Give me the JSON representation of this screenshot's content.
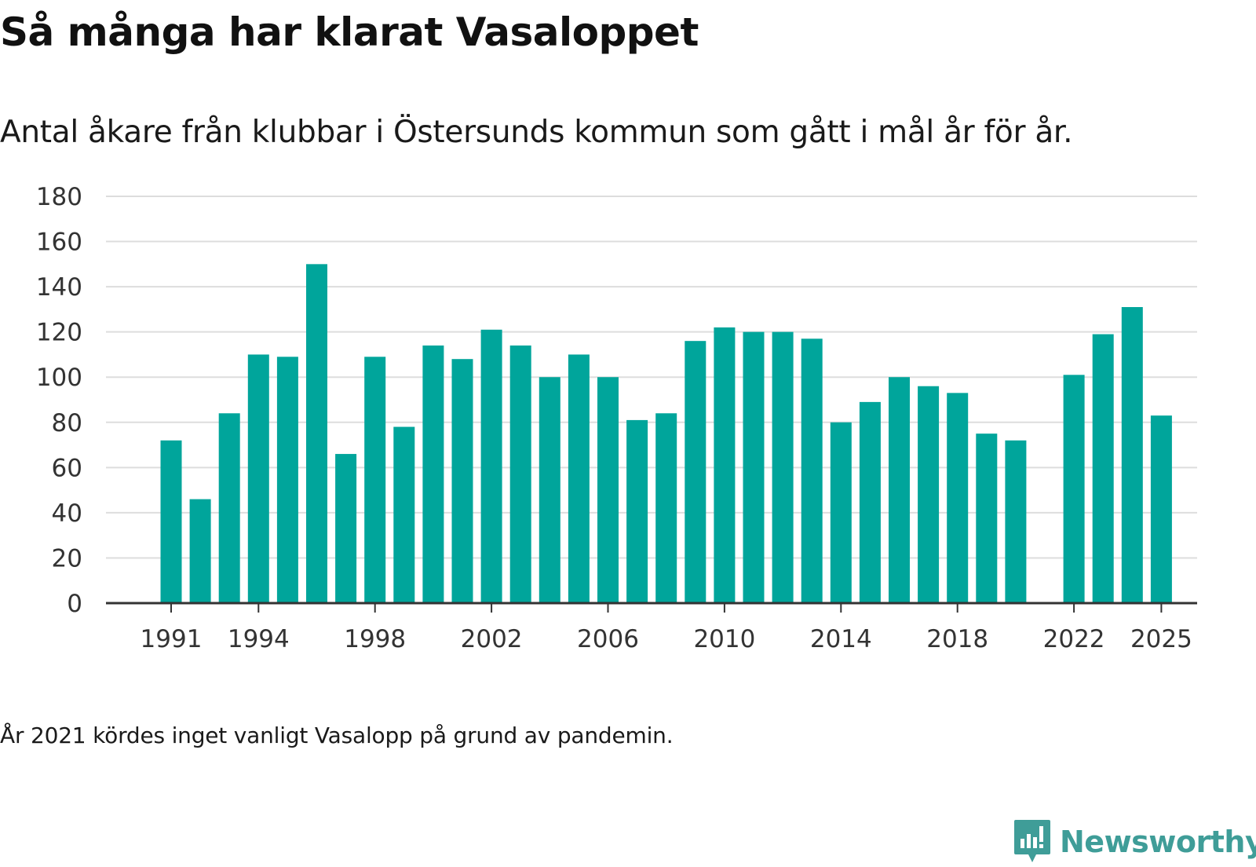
{
  "header": {
    "title": "Så många har klarat Vasaloppet",
    "subtitle": "Antal åkare från klubbar i Östersunds kommun som gått i mål år för år."
  },
  "footer": {
    "note": "År 2021 kördes inget vanligt Vasalopp på grund av pandemin.",
    "brand": "Newsworthy"
  },
  "colors": {
    "bar": "#00a59b",
    "grid": "#dddddd",
    "axis": "#333333",
    "brand": "#3f9d98"
  },
  "chart_data": {
    "type": "bar",
    "title": "Så många har klarat Vasaloppet",
    "subtitle": "Antal åkare från klubbar i Östersunds kommun som gått i mål år för år.",
    "xlabel": "",
    "ylabel": "",
    "ylim": [
      0,
      180
    ],
    "yticks": [
      0,
      20,
      40,
      60,
      80,
      100,
      120,
      140,
      160,
      180
    ],
    "xticks": [
      1991,
      1994,
      1998,
      2002,
      2006,
      2010,
      2014,
      2018,
      2022,
      2025
    ],
    "xrange": [
      1991,
      2025
    ],
    "grid": true,
    "categories": [
      1991,
      1992,
      1993,
      1994,
      1995,
      1996,
      1997,
      1998,
      1999,
      2000,
      2001,
      2002,
      2003,
      2004,
      2005,
      2006,
      2007,
      2008,
      2009,
      2010,
      2011,
      2012,
      2013,
      2014,
      2015,
      2016,
      2017,
      2018,
      2019,
      2020,
      2022,
      2023,
      2024,
      2025
    ],
    "values": [
      72,
      46,
      84,
      110,
      109,
      150,
      66,
      109,
      78,
      114,
      108,
      121,
      114,
      100,
      110,
      100,
      81,
      84,
      116,
      122,
      120,
      120,
      117,
      80,
      89,
      100,
      96,
      93,
      75,
      72,
      101,
      119,
      131,
      83
    ]
  }
}
